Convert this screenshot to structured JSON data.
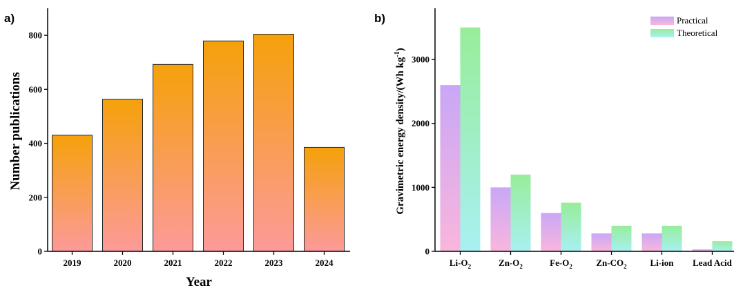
{
  "chart_data": [
    {
      "type": "bar",
      "panel_label": "a)",
      "title": "",
      "xlabel": "Year",
      "ylabel": "Number publications",
      "categories": [
        "2019",
        "2020",
        "2021",
        "2022",
        "2023",
        "2024"
      ],
      "values": [
        430,
        563,
        692,
        779,
        804,
        385
      ],
      "ylim": [
        0,
        900
      ],
      "yticks": [
        "0",
        "200",
        "400",
        "600",
        "800"
      ],
      "grid": false,
      "bar_gradient": {
        "top": "#f5a10b",
        "bottom": "#fc9a9a"
      }
    },
    {
      "type": "bar",
      "panel_label": "b)",
      "title": "",
      "xlabel": "",
      "ylabel": "Gravimetric energy density/(Wh kg-1)",
      "categories": [
        "Li-O2",
        "Zn-O2",
        "Fe-O2",
        "Zn-CO2",
        "Li-ion",
        "Lead Acid"
      ],
      "series": [
        {
          "name": "Practical",
          "values": [
            2600,
            1000,
            600,
            280,
            280,
            30
          ],
          "gradient": {
            "top": "#c9a7f7",
            "bottom": "#f9b6dc"
          }
        },
        {
          "name": "Theoretical",
          "values": [
            3500,
            1200,
            760,
            400,
            400,
            160
          ],
          "gradient": {
            "top": "#97ed9a",
            "bottom": "#a8f0f2"
          }
        }
      ],
      "ylim": [
        0,
        3800
      ],
      "yticks": [
        "0",
        "1000",
        "2000",
        "3000"
      ],
      "legend_position": "top-right",
      "grid": false
    }
  ]
}
